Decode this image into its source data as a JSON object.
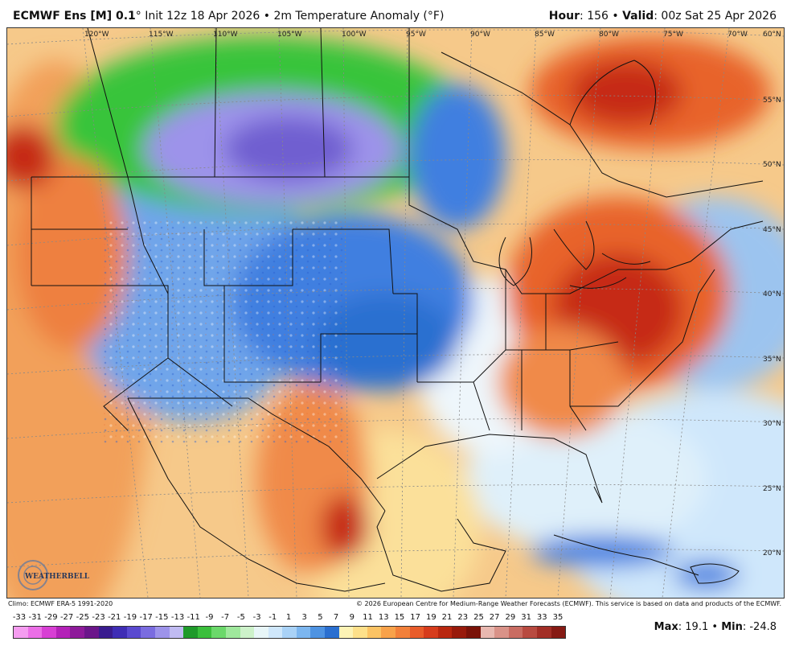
{
  "header": {
    "model": "ECMWF Ens [M] 0.1",
    "degree": "°",
    "init": "Init 12z 18 Apr 2026",
    "bullet": "•",
    "variable": "2m Temperature Anomaly (°F)",
    "hour_label": "Hour",
    "hour_value": "156",
    "valid_label": "Valid",
    "valid_value": "00z Sat 25 Apr 2026"
  },
  "map": {
    "lon_labels": [
      "120°W",
      "115°W",
      "110°W",
      "105°W",
      "100°W",
      "95°W",
      "90°W",
      "85°W",
      "80°W",
      "75°W",
      "70°W"
    ],
    "lat_labels": [
      "60°N",
      "55°N",
      "50°N",
      "45°N",
      "40°N",
      "35°N",
      "30°N",
      "25°N",
      "20°N"
    ],
    "logo_text": "WEATHERBELL",
    "colors": {
      "ocean_warm": "#f6c98a",
      "cold_core": "#6f5fd0",
      "green_zone": "#39c43b",
      "blue_zone": "#3f7fe0",
      "warm_zone": "#e8642a",
      "hot_core": "#c62a12"
    }
  },
  "footer": {
    "climo": "Climo: ECMWF ERA-5 1991-2020",
    "copyright": "© 2026 European Centre for Medium-Range Weather Forecasts (ECMWF). This service is based on data and products of the ECMWF."
  },
  "legend": {
    "ticks": [
      "-33",
      "-31",
      "-29",
      "-27",
      "-25",
      "-23",
      "-21",
      "-19",
      "-17",
      "-15",
      "-13",
      "-11",
      "-9",
      "-7",
      "-5",
      "-3",
      "-1",
      "1",
      "3",
      "5",
      "7",
      "9",
      "11",
      "13",
      "15",
      "17",
      "19",
      "21",
      "23",
      "25",
      "27",
      "29",
      "31",
      "33",
      "35"
    ],
    "colors": [
      "#f59cf0",
      "#eb6ee6",
      "#d83fd4",
      "#b422b8",
      "#8e1a9a",
      "#6b168a",
      "#3a1c8f",
      "#3f2db5",
      "#5a4ad0",
      "#7a6ce0",
      "#9d93ea",
      "#c0bbf2",
      "#1f9a2a",
      "#3bbf3c",
      "#6bd86a",
      "#9fe89c",
      "#cdf2ca",
      "#e8f6f8",
      "#cfe7fb",
      "#a9d2f7",
      "#7cb6ef",
      "#4e93e2",
      "#2a6fd0",
      "#fdf3b5",
      "#fde08a",
      "#fbc364",
      "#f8a24a",
      "#f2803a",
      "#e85c2a",
      "#d63c1c",
      "#b9270f",
      "#981a0b",
      "#7a1208",
      "#e8b8b0",
      "#d99288",
      "#c96c62",
      "#b84a40",
      "#a22e26",
      "#861a14"
    ]
  },
  "stats": {
    "max_label": "Max",
    "max_value": "19.1",
    "min_label": "Min",
    "min_value": "-24.8",
    "sep": "•"
  }
}
